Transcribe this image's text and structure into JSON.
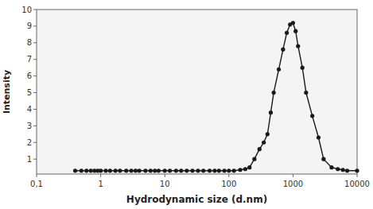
{
  "chart_data": {
    "type": "line",
    "x": [
      0.4,
      0.5,
      0.6,
      0.7,
      0.8,
      0.9,
      1.0,
      1.2,
      1.4,
      1.7,
      2.0,
      2.5,
      3.0,
      3.5,
      4.0,
      5.0,
      6.0,
      7.0,
      8.0,
      10.0,
      12.0,
      15.0,
      18.0,
      22.0,
      27.0,
      33.0,
      40.0,
      50.0,
      60.0,
      70.0,
      85.0,
      100.0,
      120.0,
      150.0,
      180.0,
      210.0,
      250.0,
      300.0,
      350.0,
      400.0,
      450.0,
      500.0,
      600.0,
      700.0,
      800.0,
      900.0,
      1000.0,
      1100.0,
      1200.0,
      1400.0,
      1600.0,
      2000.0,
      2500.0,
      3000.0,
      4000.0,
      5000.0,
      6000.0,
      7000.0,
      10000.0
    ],
    "values": [
      0.3,
      0.3,
      0.3,
      0.3,
      0.3,
      0.3,
      0.3,
      0.3,
      0.3,
      0.3,
      0.3,
      0.3,
      0.3,
      0.3,
      0.3,
      0.3,
      0.3,
      0.3,
      0.3,
      0.3,
      0.3,
      0.3,
      0.3,
      0.3,
      0.3,
      0.3,
      0.3,
      0.3,
      0.3,
      0.3,
      0.3,
      0.3,
      0.3,
      0.35,
      0.4,
      0.5,
      1.0,
      1.6,
      2.0,
      2.5,
      3.8,
      5.0,
      6.4,
      7.6,
      8.6,
      9.1,
      9.2,
      8.7,
      7.8,
      6.5,
      5.0,
      3.6,
      2.3,
      1.0,
      0.5,
      0.4,
      0.35,
      0.3,
      0.3
    ],
    "color": "#1a1a1a",
    "marker": "circle",
    "xlabel": "Hydrodynamic size (d.nm)",
    "ylabel": "Intensity",
    "log": "x",
    "xlim": [
      0.1,
      10000
    ],
    "ylim": [
      0.1,
      10
    ],
    "xticks": [
      {
        "value": 0.1,
        "label": "0,1"
      },
      1,
      10,
      100,
      1000,
      10000
    ],
    "yticks": [
      1,
      2,
      3,
      4,
      5,
      6,
      7,
      8,
      9,
      10
    ],
    "grid": false
  }
}
